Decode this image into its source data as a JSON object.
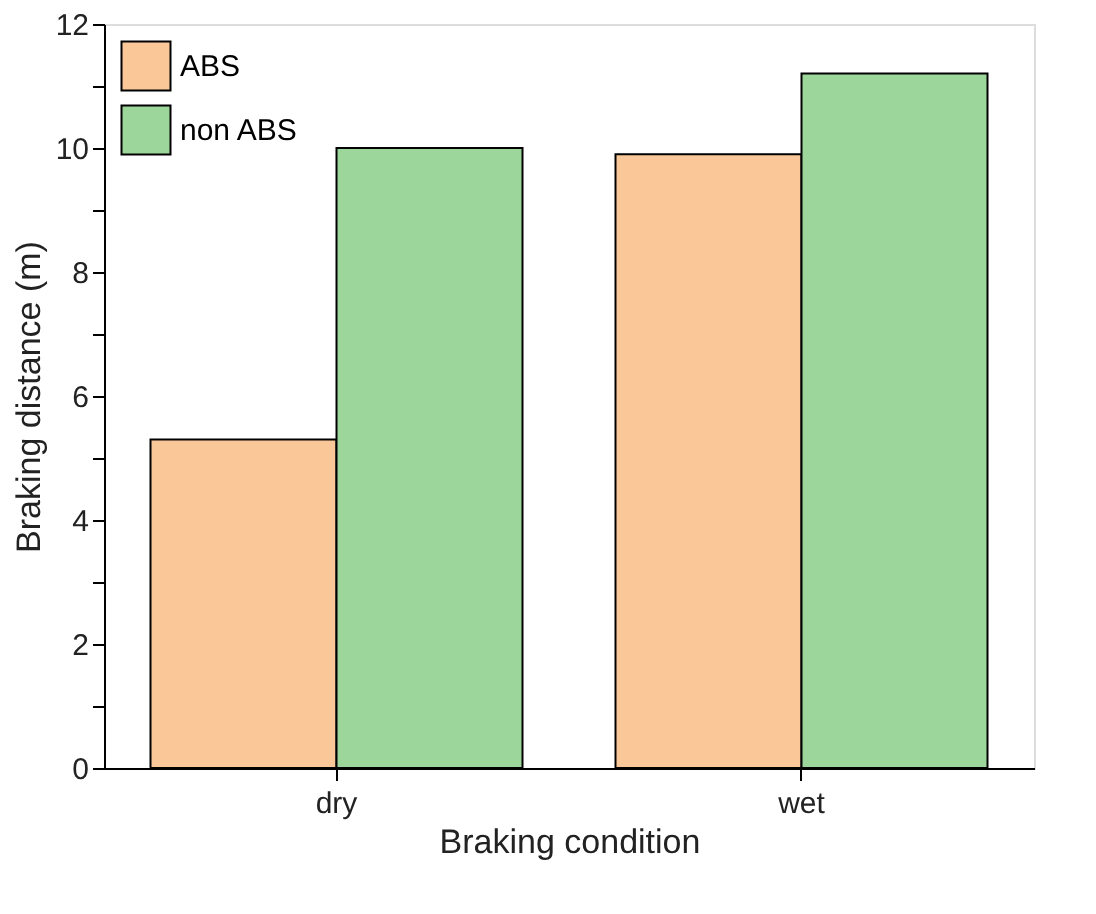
{
  "chart_data": {
    "type": "bar",
    "xlabel": "Braking condition",
    "ylabel": "Braking distance (m)",
    "categories": [
      "dry",
      "wet"
    ],
    "series": [
      {
        "name": "ABS",
        "color": "#fac898",
        "values": [
          5.3,
          9.9
        ]
      },
      {
        "name": "non ABS",
        "color": "#9dd69a",
        "values": [
          10.0,
          11.2
        ]
      }
    ],
    "ylim": [
      0,
      12
    ],
    "yticks": [
      0,
      {
        "value": 1,
        "label": null
      },
      2,
      {
        "value": 3,
        "label": null
      },
      4,
      {
        "value": 5,
        "label": null
      },
      6,
      {
        "value": 7,
        "label": null
      },
      8,
      {
        "value": 9,
        "label": null
      },
      10,
      {
        "value": 11,
        "label": null
      },
      12
    ],
    "grid": false,
    "legend": "top left"
  }
}
